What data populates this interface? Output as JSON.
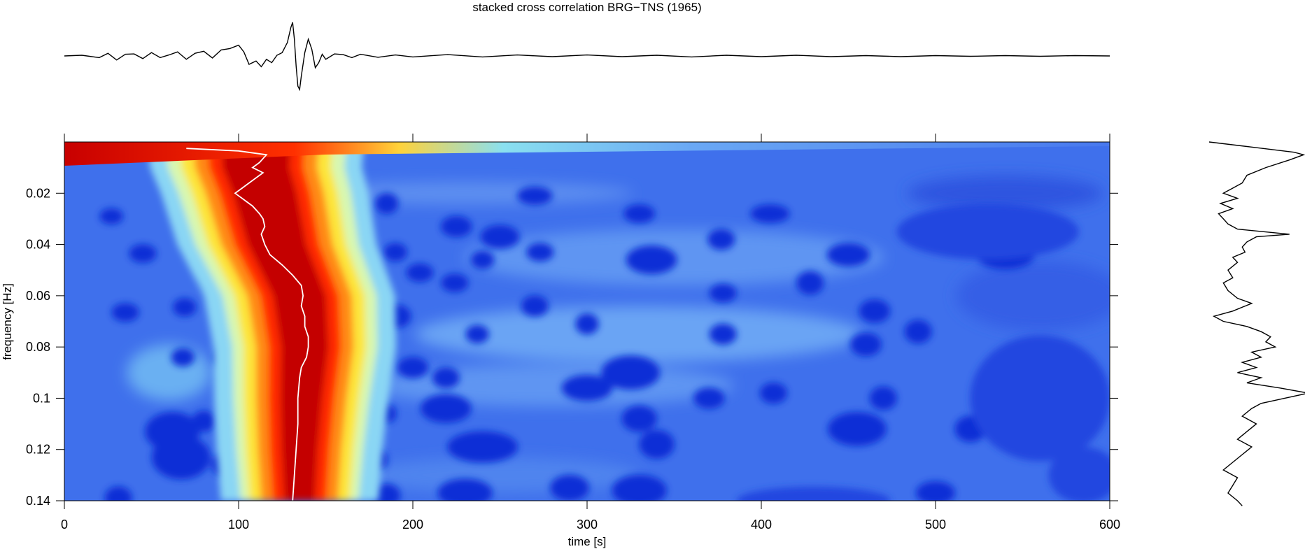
{
  "chart_data": [
    {
      "type": "line",
      "panel": "top-trace",
      "title": "stacked cross correlation BRG−TNS (1965)",
      "xlim": [
        0,
        600
      ],
      "description_series": "cross-correlation waveform, peak near t=130 s",
      "x": [
        0,
        10,
        20,
        25,
        30,
        35,
        40,
        45,
        50,
        55,
        60,
        65,
        70,
        75,
        80,
        85,
        90,
        95,
        100,
        103,
        106,
        110,
        113,
        116,
        119,
        122,
        125,
        128,
        130,
        131,
        132,
        133,
        134,
        135,
        136,
        138,
        140,
        142,
        144,
        146,
        148,
        150,
        155,
        160,
        165,
        170,
        180,
        190,
        200,
        220,
        240,
        260,
        280,
        300,
        320,
        340,
        360,
        380,
        400,
        420,
        440,
        460,
        480,
        500,
        520,
        540,
        560,
        580,
        600
      ],
      "y": [
        0,
        0.02,
        -0.05,
        0.08,
        -0.12,
        0.05,
        0.06,
        -0.08,
        0.1,
        -0.05,
        0.03,
        0.12,
        -0.1,
        0.08,
        0.14,
        -0.06,
        0.18,
        0.22,
        0.32,
        0.12,
        -0.25,
        -0.15,
        -0.32,
        -0.1,
        -0.2,
        0.02,
        0.1,
        0.4,
        0.85,
        1.0,
        0.5,
        -0.3,
        -0.9,
        -1.0,
        -0.6,
        0.1,
        0.5,
        0.2,
        -0.35,
        -0.2,
        0.05,
        -0.1,
        0.06,
        0.04,
        -0.05,
        0.05,
        -0.04,
        0.03,
        -0.03,
        0.04,
        -0.03,
        0.03,
        -0.02,
        0.03,
        -0.02,
        0.02,
        -0.03,
        0.02,
        -0.02,
        0.02,
        -0.02,
        0.01,
        -0.02,
        0.01,
        -0.01,
        0.01,
        -0.01,
        0.01,
        0
      ]
    },
    {
      "type": "heatmap",
      "panel": "main-spectrogram",
      "xlabel": "time [s]",
      "ylabel": "frequency [Hz]",
      "xlim": [
        0,
        600
      ],
      "ylim": [
        0.0,
        0.14
      ],
      "xticks": [
        "0",
        "100",
        "200",
        "300",
        "400",
        "500",
        "600"
      ],
      "yticks": [
        "0.02",
        "0.04",
        "0.06",
        "0.08",
        "0.1",
        "0.12",
        "0.14"
      ],
      "colormap": "jet",
      "ridge_center": [
        [
          0.01,
          110
        ],
        [
          0.02,
          115
        ],
        [
          0.04,
          122
        ],
        [
          0.06,
          135
        ],
        [
          0.08,
          138
        ],
        [
          0.1,
          136
        ],
        [
          0.12,
          135
        ],
        [
          0.14,
          135
        ]
      ],
      "ridge_curve": {
        "freq": [
          0.0025,
          0.0035,
          0.005,
          0.008,
          0.01,
          0.012,
          0.015,
          0.018,
          0.02,
          0.022,
          0.025,
          0.028,
          0.03,
          0.033,
          0.036,
          0.04,
          0.044,
          0.048,
          0.052,
          0.056,
          0.06,
          0.064,
          0.068,
          0.072,
          0.076,
          0.08,
          0.084,
          0.088,
          0.092,
          0.1,
          0.11,
          0.12,
          0.13,
          0.14
        ],
        "time": [
          70,
          100,
          116,
          112,
          108,
          114,
          108,
          102,
          98,
          102,
          108,
          112,
          114,
          115,
          113,
          115,
          118,
          125,
          131,
          136,
          137,
          136,
          138,
          138,
          140,
          140,
          139,
          136,
          135,
          134,
          134,
          133,
          132,
          131
        ]
      }
    },
    {
      "type": "line",
      "panel": "right-profile",
      "description_series": "frequency-dependent amplitude profile",
      "ylim": [
        0.0,
        0.14
      ],
      "freq": [
        0.0,
        0.002,
        0.004,
        0.005,
        0.007,
        0.01,
        0.013,
        0.016,
        0.018,
        0.02,
        0.022,
        0.024,
        0.026,
        0.028,
        0.03,
        0.032,
        0.034,
        0.036,
        0.037,
        0.038,
        0.039,
        0.041,
        0.043,
        0.045,
        0.047,
        0.05,
        0.053,
        0.055,
        0.058,
        0.061,
        0.063,
        0.066,
        0.068,
        0.07,
        0.072,
        0.074,
        0.076,
        0.078,
        0.08,
        0.082,
        0.084,
        0.086,
        0.088,
        0.09,
        0.092,
        0.094,
        0.096,
        0.098,
        0.1,
        0.102,
        0.104,
        0.107,
        0.11,
        0.113,
        0.116,
        0.119,
        0.122,
        0.125,
        0.128,
        0.131,
        0.134,
        0.137,
        0.14,
        0.142
      ],
      "value": [
        0.0,
        0.45,
        0.9,
        1.0,
        0.85,
        0.6,
        0.4,
        0.35,
        0.25,
        0.15,
        0.3,
        0.12,
        0.25,
        0.1,
        0.15,
        0.2,
        0.3,
        0.85,
        0.5,
        0.45,
        0.4,
        0.35,
        0.38,
        0.25,
        0.3,
        0.2,
        0.25,
        0.15,
        0.2,
        0.3,
        0.45,
        0.25,
        0.05,
        0.15,
        0.4,
        0.55,
        0.65,
        0.6,
        0.7,
        0.45,
        0.55,
        0.35,
        0.5,
        0.3,
        0.55,
        0.4,
        0.75,
        1.05,
        0.8,
        0.55,
        0.45,
        0.35,
        0.5,
        0.4,
        0.3,
        0.45,
        0.35,
        0.25,
        0.15,
        0.3,
        0.25,
        0.2,
        0.3,
        0.35
      ]
    }
  ]
}
